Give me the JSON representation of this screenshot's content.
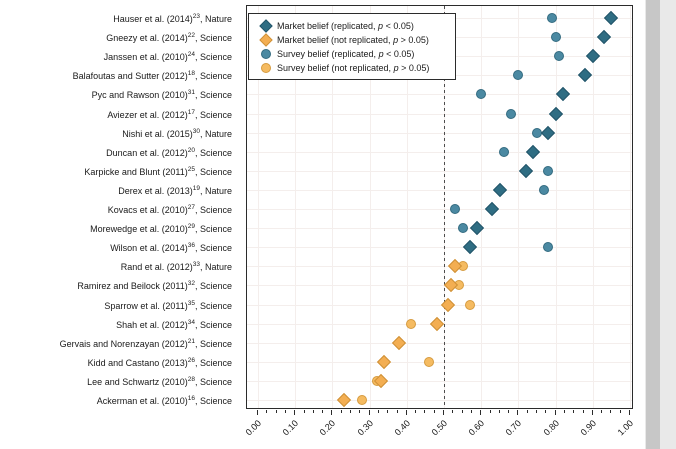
{
  "chart_data": {
    "type": "scatter",
    "title": "",
    "xlabel": "",
    "ylabel": "",
    "xlim": [
      -0.03,
      1.01
    ],
    "x_ticks": [
      "0.00",
      "0.10",
      "0.20",
      "0.30",
      "0.40",
      "0.50",
      "0.60",
      "0.70",
      "0.80",
      "0.90",
      "1.00"
    ],
    "x_minor_tick_step": 0.025,
    "reference_line_x": 0.5,
    "grid": "on",
    "legend_position": "top-left-inside",
    "legend": [
      {
        "marker": "diamond",
        "variant": "market_replicated",
        "label": "Market belief (replicated, p < 0.05)"
      },
      {
        "marker": "diamond",
        "variant": "market_not_replicated",
        "label": "Market belief (not replicated, p > 0.05)"
      },
      {
        "marker": "circle",
        "variant": "survey_replicated",
        "label": "Survey belief (replicated, p < 0.05)"
      },
      {
        "marker": "circle",
        "variant": "survey_not_replicated",
        "label": "Survey belief (not replicated, p > 0.05)"
      }
    ],
    "series_note": "market = diamond marker, survey = circle marker; dark teal = replicated (p < 0.05), orange = not replicated (p > 0.05)",
    "studies": [
      {
        "label": "Hauser et al. (2014)",
        "ref": "23",
        "journal": "Nature",
        "market": 0.95,
        "survey": 0.79,
        "replicated": true
      },
      {
        "label": "Gneezy et al. (2014)",
        "ref": "22",
        "journal": "Science",
        "market": 0.93,
        "survey": 0.8,
        "replicated": true
      },
      {
        "label": "Janssen et al. (2010)",
        "ref": "24",
        "journal": "Science",
        "market": 0.9,
        "survey": 0.81,
        "replicated": true
      },
      {
        "label": "Balafoutas and Sutter (2012)",
        "ref": "18",
        "journal": "Science",
        "market": 0.88,
        "survey": 0.7,
        "replicated": true
      },
      {
        "label": "Pyc and Rawson (2010)",
        "ref": "31",
        "journal": "Science",
        "market": 0.82,
        "survey": 0.6,
        "replicated": true
      },
      {
        "label": "Aviezer et al. (2012)",
        "ref": "17",
        "journal": "Science",
        "market": 0.8,
        "survey": 0.68,
        "replicated": true
      },
      {
        "label": "Nishi et al. (2015)",
        "ref": "30",
        "journal": "Nature",
        "market": 0.78,
        "survey": 0.75,
        "replicated": true
      },
      {
        "label": "Duncan et al. (2012)",
        "ref": "20",
        "journal": "Science",
        "market": 0.74,
        "survey": 0.66,
        "replicated": true
      },
      {
        "label": "Karpicke and Blunt (2011)",
        "ref": "25",
        "journal": "Science",
        "market": 0.72,
        "survey": 0.78,
        "replicated": true
      },
      {
        "label": "Derex et al. (2013)",
        "ref": "19",
        "journal": "Nature",
        "market": 0.65,
        "survey": 0.77,
        "replicated": true
      },
      {
        "label": "Kovacs et al. (2010)",
        "ref": "27",
        "journal": "Science",
        "market": 0.63,
        "survey": 0.53,
        "replicated": true
      },
      {
        "label": "Morewedge et al. (2010)",
        "ref": "29",
        "journal": "Science",
        "market": 0.59,
        "survey": 0.55,
        "replicated": true
      },
      {
        "label": "Wilson et al. (2014)",
        "ref": "36",
        "journal": "Science",
        "market": 0.57,
        "survey": 0.78,
        "replicated": true
      },
      {
        "label": "Rand et al. (2012)",
        "ref": "33",
        "journal": "Nature",
        "market": 0.53,
        "survey": 0.55,
        "replicated": false
      },
      {
        "label": "Ramirez and Beilock (2011)",
        "ref": "32",
        "journal": "Science",
        "market": 0.52,
        "survey": 0.54,
        "replicated": false
      },
      {
        "label": "Sparrow et al. (2011)",
        "ref": "35",
        "journal": "Science",
        "market": 0.51,
        "survey": 0.57,
        "replicated": false
      },
      {
        "label": "Shah et al. (2012)",
        "ref": "34",
        "journal": "Science",
        "market": 0.48,
        "survey": 0.41,
        "replicated": false
      },
      {
        "label": "Gervais and Norenzayan (2012)",
        "ref": "21",
        "journal": "Science",
        "market": 0.38,
        "survey": 0.38,
        "replicated": false
      },
      {
        "label": "Kidd and Castano (2013)",
        "ref": "26",
        "journal": "Science",
        "market": 0.34,
        "survey": 0.46,
        "replicated": false
      },
      {
        "label": "Lee and Schwartz (2010)",
        "ref": "28",
        "journal": "Science",
        "market": 0.33,
        "survey": 0.32,
        "replicated": false
      },
      {
        "label": "Ackerman et al. (2010)",
        "ref": "16",
        "journal": "Science",
        "market": 0.23,
        "survey": 0.28,
        "replicated": false
      }
    ],
    "colors": {
      "market_replicated_fill": "#2f6d83",
      "market_replicated_border": "#24566a",
      "market_not_replicated_fill": "#f3ae52",
      "market_not_replicated_border": "#cf9138",
      "survey_replicated_fill": "#4b89a2",
      "survey_replicated_border": "#336b80",
      "survey_not_replicated_fill": "#f5bb61",
      "survey_not_replicated_border": "#d69b3f",
      "reference_line": "#4d4d4d",
      "axis": "#2b2b2b",
      "grid": "#f4eeec",
      "text": "#1a1a1a"
    }
  },
  "scrollbar": {
    "thumb_color": "#c7c7c7",
    "track_color": "#e9e9e9"
  }
}
